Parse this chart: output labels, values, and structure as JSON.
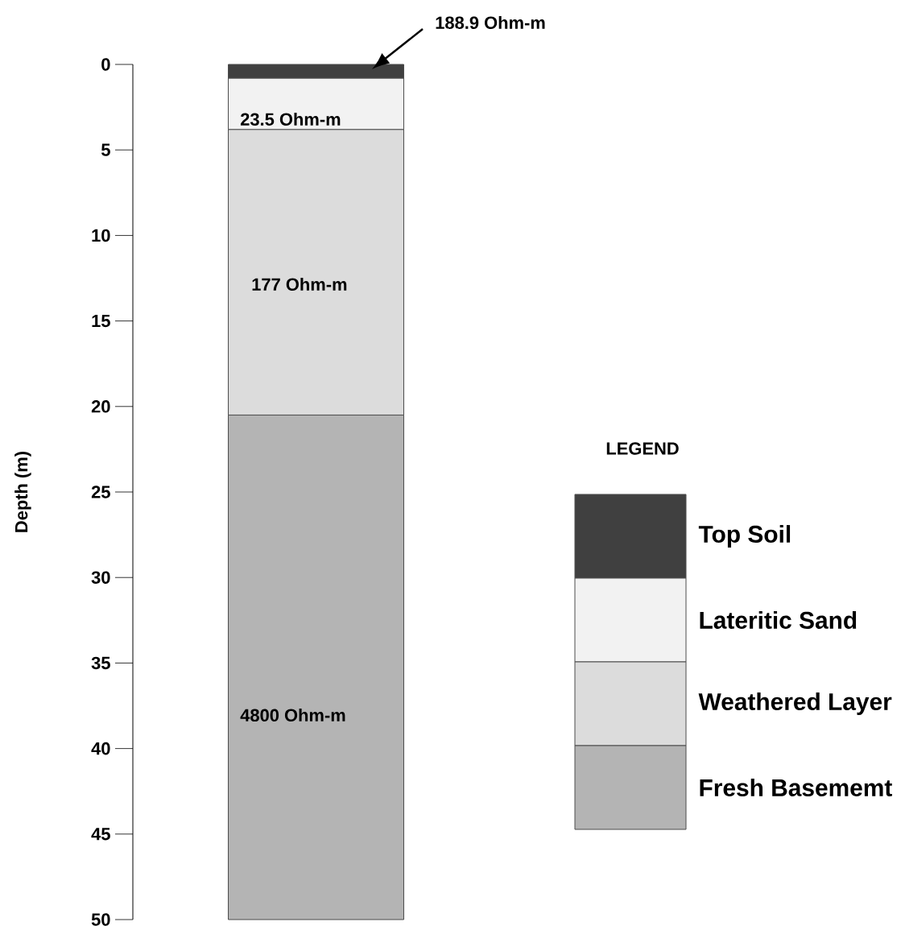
{
  "chart_data": {
    "type": "bar",
    "stacked": true,
    "ylabel": "Depth (m)",
    "legend_title": "LEGEND",
    "categories": [
      null
    ],
    "series": [
      {
        "name": "Top Soil",
        "color": "#404040",
        "values": [
          0.8
        ]
      },
      {
        "name": "Lateritic Sand",
        "color": "#f2f2f2",
        "values": [
          3.0
        ]
      },
      {
        "name": "Weathered Layer",
        "color": "#dcdcdc",
        "values": [
          16.7
        ]
      },
      {
        "name": "Fresh Basememt",
        "color": "#b4b4b4",
        "values": [
          29.5
        ]
      }
    ],
    "ylim": [
      50,
      0
    ],
    "yticks": [
      0,
      5,
      10,
      15,
      20,
      25,
      30,
      35,
      40,
      45,
      50
    ],
    "grid": false,
    "legend": "right",
    "annotations": [
      "188.9 Ohm-m",
      "23.5 Ohm-m",
      "177 Ohm-m",
      "4800 Ohm-m"
    ]
  }
}
